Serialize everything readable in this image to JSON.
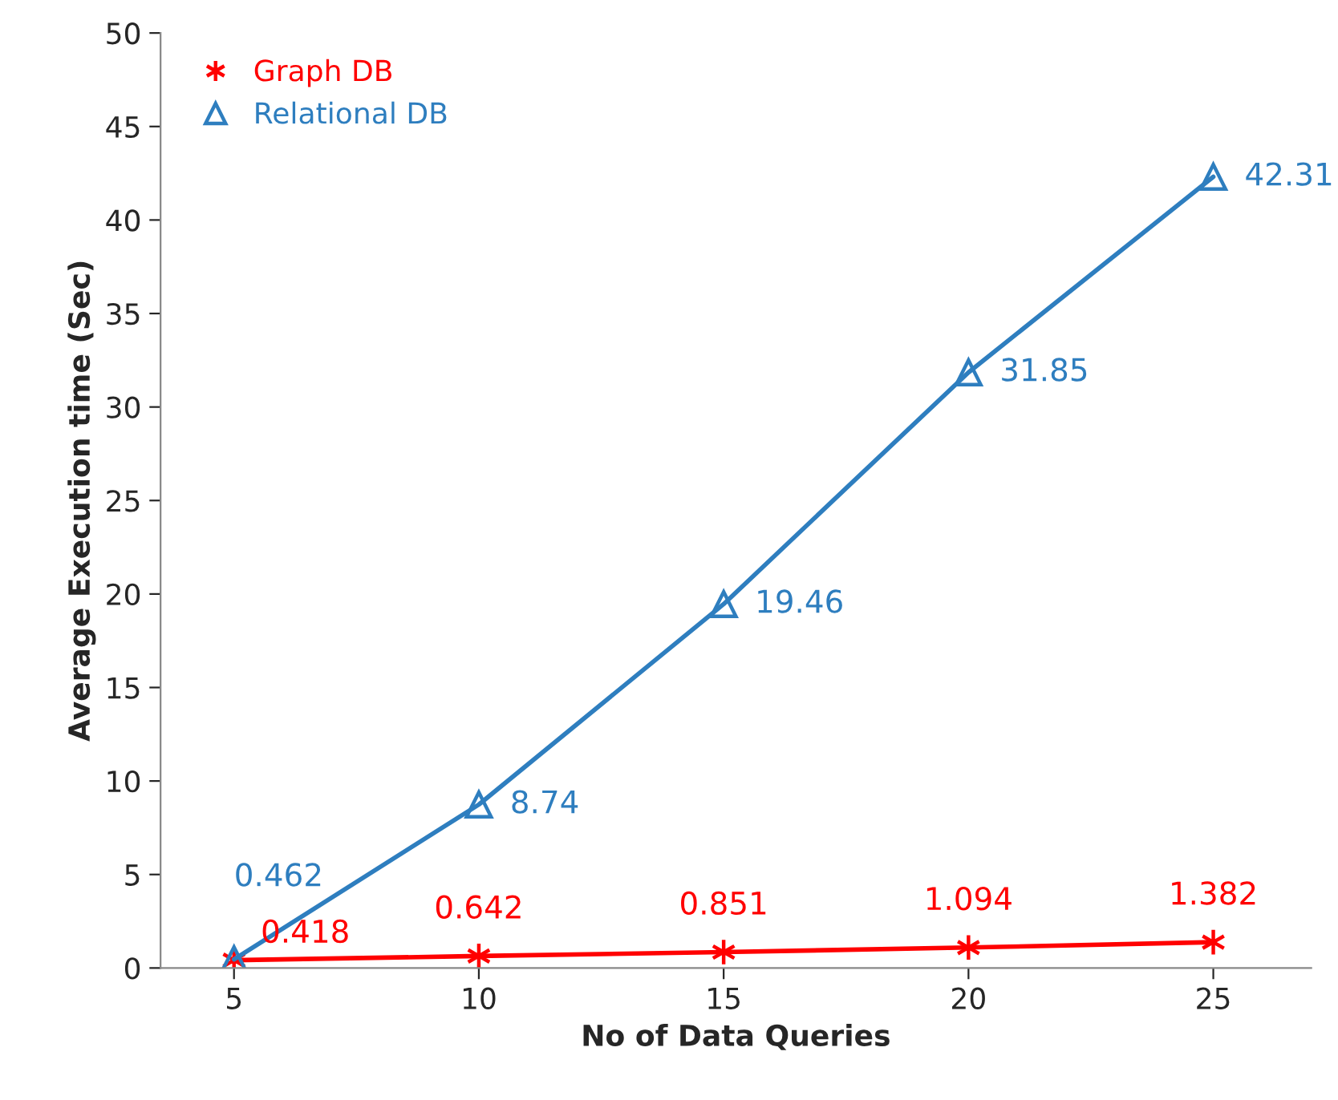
{
  "chart_data": {
    "type": "line",
    "xlabel": "No of Data Queries",
    "ylabel": "Average Execution time (Sec)",
    "categories": [
      "5",
      "10",
      "15",
      "20",
      "25"
    ],
    "series": [
      {
        "name": "Graph DB",
        "color": "#ff0000",
        "marker": "cross",
        "values": [
          0.418,
          0.642,
          0.851,
          1.094,
          1.382
        ]
      },
      {
        "name": "Relational DB",
        "color": "#2e7ebf",
        "marker": "triangle",
        "values": [
          0.462,
          8.74,
          19.46,
          31.85,
          42.31
        ]
      }
    ],
    "ylim": [
      0,
      50
    ],
    "yticks": [
      0,
      5,
      10,
      15,
      20,
      25,
      30,
      35,
      40,
      45,
      50
    ],
    "data_labels": true,
    "grid": false,
    "legend": "top left",
    "line_style": "solid"
  }
}
